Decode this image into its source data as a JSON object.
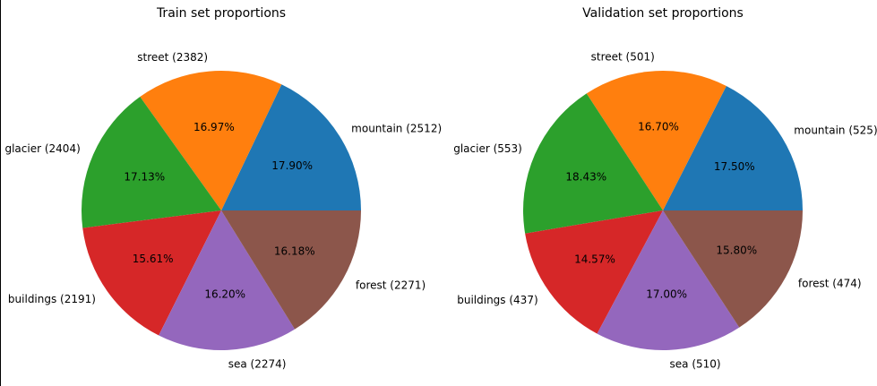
{
  "chart_data": [
    {
      "type": "pie",
      "title": "Train set proportions",
      "slices": [
        {
          "label": "mountain (2512)",
          "value": 2512,
          "pct": "17.90%",
          "color": "#1f77b4"
        },
        {
          "label": "street (2382)",
          "value": 2382,
          "pct": "16.97%",
          "color": "#ff7f0e"
        },
        {
          "label": "glacier (2404)",
          "value": 2404,
          "pct": "17.13%",
          "color": "#2ca02c"
        },
        {
          "label": "buildings (2191)",
          "value": 2191,
          "pct": "15.61%",
          "color": "#d62728"
        },
        {
          "label": "sea (2274)",
          "value": 2274,
          "pct": "16.20%",
          "color": "#9467bd"
        },
        {
          "label": "forest (2271)",
          "value": 2271,
          "pct": "16.18%",
          "color": "#8c564b"
        }
      ]
    },
    {
      "type": "pie",
      "title": "Validation set proportions",
      "slices": [
        {
          "label": "mountain (525)",
          "value": 525,
          "pct": "17.50%",
          "color": "#1f77b4"
        },
        {
          "label": "street (501)",
          "value": 501,
          "pct": "16.70%",
          "color": "#ff7f0e"
        },
        {
          "label": "glacier (553)",
          "value": 553,
          "pct": "18.43%",
          "color": "#2ca02c"
        },
        {
          "label": "buildings (437)",
          "value": 437,
          "pct": "14.57%",
          "color": "#d62728"
        },
        {
          "label": "sea (510)",
          "value": 510,
          "pct": "17.00%",
          "color": "#9467bd"
        },
        {
          "label": "forest (474)",
          "value": 474,
          "pct": "15.80%",
          "color": "#8c564b"
        }
      ]
    }
  ]
}
